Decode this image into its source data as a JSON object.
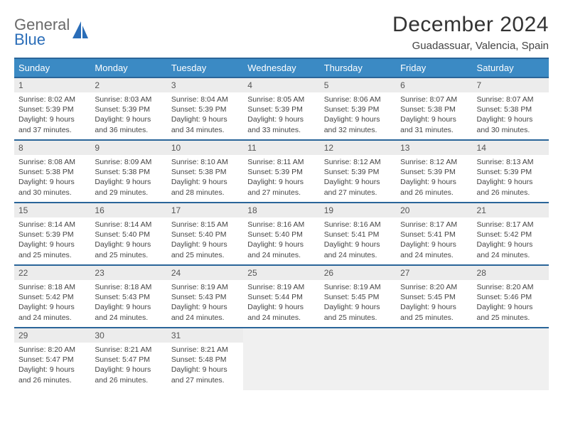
{
  "logo": {
    "word1": "General",
    "word2": "Blue"
  },
  "title": "December 2024",
  "location": "Guadassuar, Valencia, Spain",
  "colors": {
    "header_bg": "#3b8ac4",
    "header_border": "#2a6599",
    "daynum_bg": "#ececec",
    "empty_bg": "#f0f0f0",
    "text": "#444444",
    "logo_gray": "#6a6a6a",
    "logo_blue": "#2a6db8"
  },
  "weekdays": [
    "Sunday",
    "Monday",
    "Tuesday",
    "Wednesday",
    "Thursday",
    "Friday",
    "Saturday"
  ],
  "days": [
    {
      "n": "1",
      "sr": "8:02 AM",
      "ss": "5:39 PM",
      "dl": "9 hours and 37 minutes."
    },
    {
      "n": "2",
      "sr": "8:03 AM",
      "ss": "5:39 PM",
      "dl": "9 hours and 36 minutes."
    },
    {
      "n": "3",
      "sr": "8:04 AM",
      "ss": "5:39 PM",
      "dl": "9 hours and 34 minutes."
    },
    {
      "n": "4",
      "sr": "8:05 AM",
      "ss": "5:39 PM",
      "dl": "9 hours and 33 minutes."
    },
    {
      "n": "5",
      "sr": "8:06 AM",
      "ss": "5:39 PM",
      "dl": "9 hours and 32 minutes."
    },
    {
      "n": "6",
      "sr": "8:07 AM",
      "ss": "5:38 PM",
      "dl": "9 hours and 31 minutes."
    },
    {
      "n": "7",
      "sr": "8:07 AM",
      "ss": "5:38 PM",
      "dl": "9 hours and 30 minutes."
    },
    {
      "n": "8",
      "sr": "8:08 AM",
      "ss": "5:38 PM",
      "dl": "9 hours and 30 minutes."
    },
    {
      "n": "9",
      "sr": "8:09 AM",
      "ss": "5:38 PM",
      "dl": "9 hours and 29 minutes."
    },
    {
      "n": "10",
      "sr": "8:10 AM",
      "ss": "5:38 PM",
      "dl": "9 hours and 28 minutes."
    },
    {
      "n": "11",
      "sr": "8:11 AM",
      "ss": "5:39 PM",
      "dl": "9 hours and 27 minutes."
    },
    {
      "n": "12",
      "sr": "8:12 AM",
      "ss": "5:39 PM",
      "dl": "9 hours and 27 minutes."
    },
    {
      "n": "13",
      "sr": "8:12 AM",
      "ss": "5:39 PM",
      "dl": "9 hours and 26 minutes."
    },
    {
      "n": "14",
      "sr": "8:13 AM",
      "ss": "5:39 PM",
      "dl": "9 hours and 26 minutes."
    },
    {
      "n": "15",
      "sr": "8:14 AM",
      "ss": "5:39 PM",
      "dl": "9 hours and 25 minutes."
    },
    {
      "n": "16",
      "sr": "8:14 AM",
      "ss": "5:40 PM",
      "dl": "9 hours and 25 minutes."
    },
    {
      "n": "17",
      "sr": "8:15 AM",
      "ss": "5:40 PM",
      "dl": "9 hours and 25 minutes."
    },
    {
      "n": "18",
      "sr": "8:16 AM",
      "ss": "5:40 PM",
      "dl": "9 hours and 24 minutes."
    },
    {
      "n": "19",
      "sr": "8:16 AM",
      "ss": "5:41 PM",
      "dl": "9 hours and 24 minutes."
    },
    {
      "n": "20",
      "sr": "8:17 AM",
      "ss": "5:41 PM",
      "dl": "9 hours and 24 minutes."
    },
    {
      "n": "21",
      "sr": "8:17 AM",
      "ss": "5:42 PM",
      "dl": "9 hours and 24 minutes."
    },
    {
      "n": "22",
      "sr": "8:18 AM",
      "ss": "5:42 PM",
      "dl": "9 hours and 24 minutes."
    },
    {
      "n": "23",
      "sr": "8:18 AM",
      "ss": "5:43 PM",
      "dl": "9 hours and 24 minutes."
    },
    {
      "n": "24",
      "sr": "8:19 AM",
      "ss": "5:43 PM",
      "dl": "9 hours and 24 minutes."
    },
    {
      "n": "25",
      "sr": "8:19 AM",
      "ss": "5:44 PM",
      "dl": "9 hours and 24 minutes."
    },
    {
      "n": "26",
      "sr": "8:19 AM",
      "ss": "5:45 PM",
      "dl": "9 hours and 25 minutes."
    },
    {
      "n": "27",
      "sr": "8:20 AM",
      "ss": "5:45 PM",
      "dl": "9 hours and 25 minutes."
    },
    {
      "n": "28",
      "sr": "8:20 AM",
      "ss": "5:46 PM",
      "dl": "9 hours and 25 minutes."
    },
    {
      "n": "29",
      "sr": "8:20 AM",
      "ss": "5:47 PM",
      "dl": "9 hours and 26 minutes."
    },
    {
      "n": "30",
      "sr": "8:21 AM",
      "ss": "5:47 PM",
      "dl": "9 hours and 26 minutes."
    },
    {
      "n": "31",
      "sr": "8:21 AM",
      "ss": "5:48 PM",
      "dl": "9 hours and 27 minutes."
    }
  ],
  "labels": {
    "sunrise": "Sunrise:",
    "sunset": "Sunset:",
    "daylight": "Daylight:"
  }
}
